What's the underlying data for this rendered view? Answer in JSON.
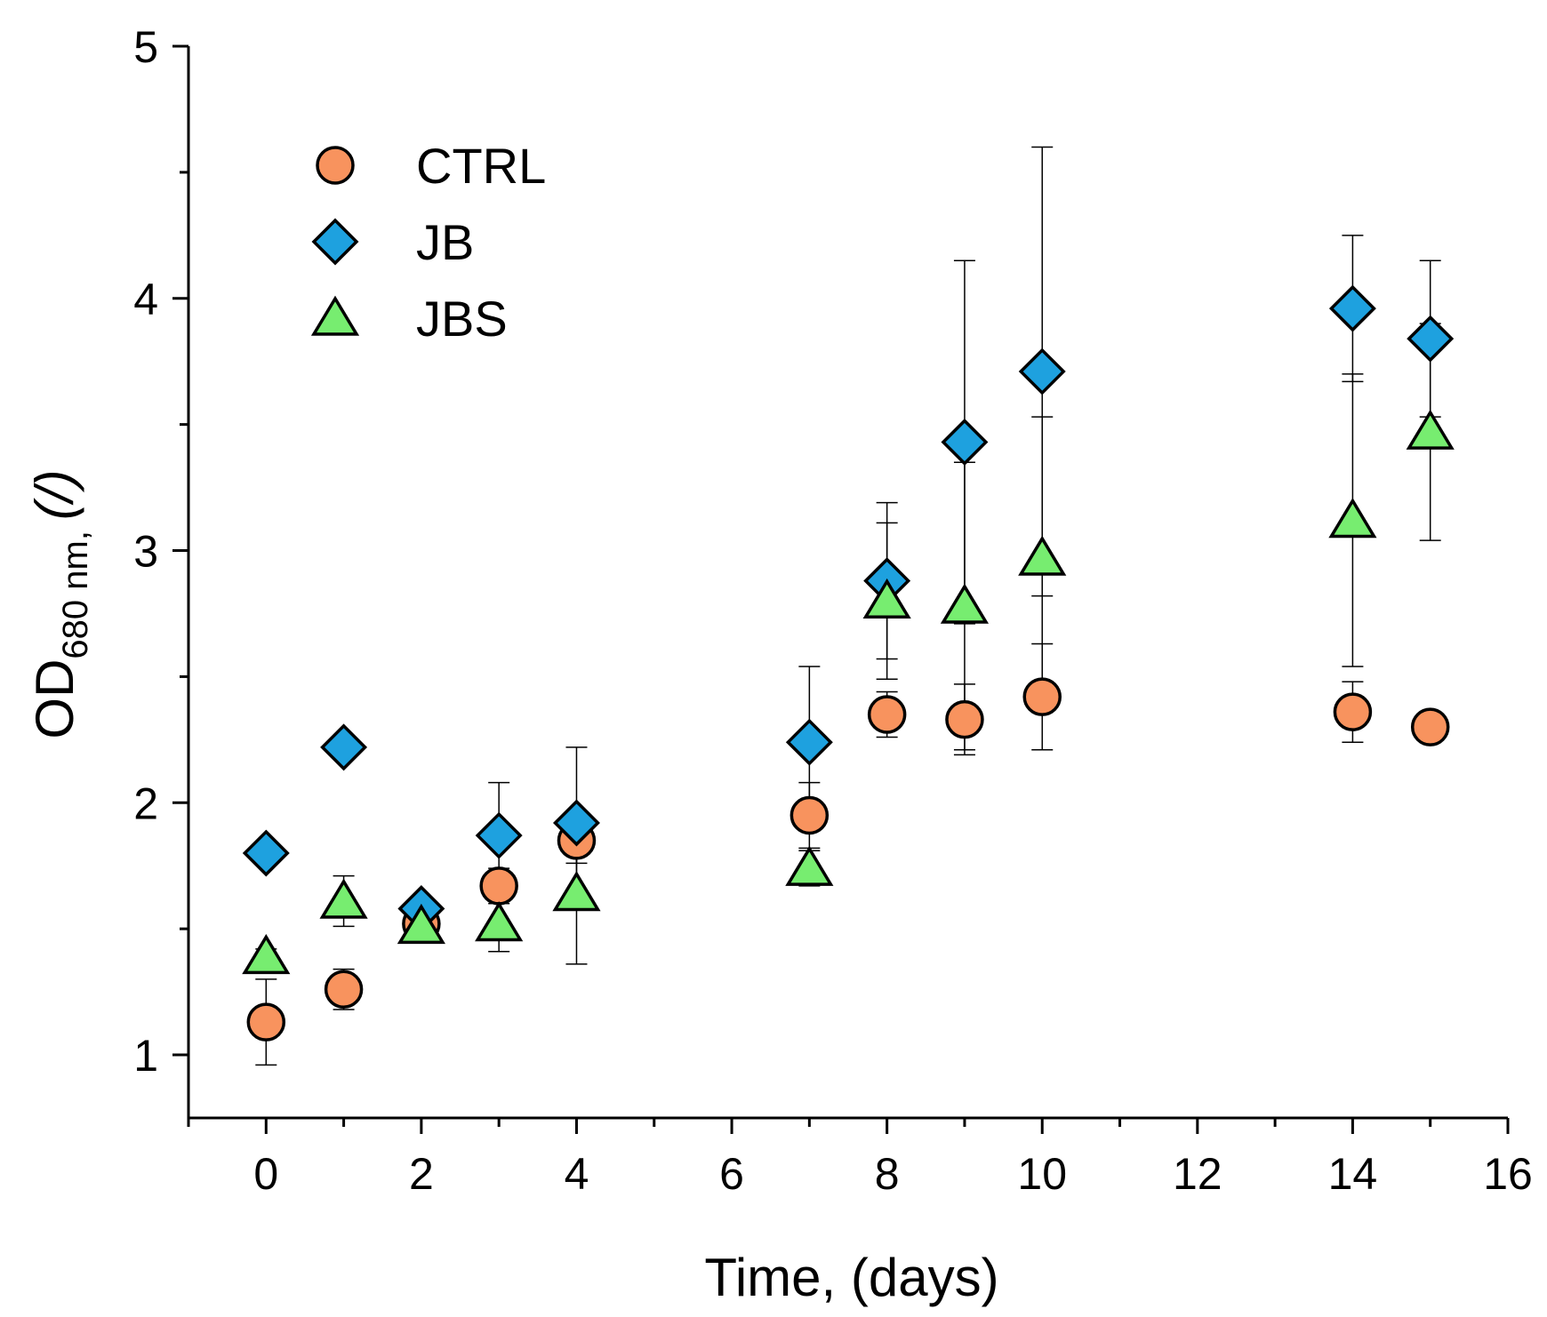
{
  "chart_data": {
    "type": "scatter",
    "title": "",
    "xlabel": "Time, (days)",
    "ylabel": {
      "main": "OD",
      "subscript": "680 nm,",
      "unit": "(/)"
    },
    "xlim": [
      -1,
      16
    ],
    "ylim": [
      0.75,
      5
    ],
    "xticks": [
      0,
      2,
      4,
      6,
      8,
      10,
      12,
      14,
      16
    ],
    "yticks": [
      1,
      2,
      3,
      4,
      5
    ],
    "grid": false,
    "legend_position": "top-left",
    "series": [
      {
        "name": "CTRL",
        "marker": "circle",
        "color": "#F8935E",
        "x": [
          0,
          1,
          2,
          3,
          4,
          7,
          8,
          9,
          10,
          14,
          15
        ],
        "y": [
          1.13,
          1.26,
          1.52,
          1.67,
          1.85,
          1.95,
          2.35,
          2.33,
          2.42,
          2.36,
          2.3
        ],
        "err": [
          0.17,
          0.08,
          0.04,
          0.07,
          0.09,
          0.13,
          0.09,
          0.14,
          0.21,
          0.12,
          0.06
        ]
      },
      {
        "name": "JB",
        "marker": "diamond",
        "color": "#1EA1DF",
        "x": [
          0,
          1,
          2,
          3,
          4,
          7,
          8,
          9,
          10,
          14,
          15
        ],
        "y": [
          1.8,
          2.22,
          1.58,
          1.87,
          1.92,
          2.24,
          2.88,
          3.43,
          3.71,
          3.96,
          3.84
        ],
        "err": [
          0.04,
          0.04,
          0.04,
          0.21,
          0.3,
          0.3,
          0.31,
          0.72,
          0.89,
          0.29,
          0.31
        ]
      },
      {
        "name": "JBS",
        "marker": "triangle",
        "color": "#77ED70",
        "x": [
          0,
          1,
          2,
          3,
          4,
          7,
          8,
          9,
          10,
          14,
          15
        ],
        "y": [
          1.39,
          1.61,
          1.51,
          1.52,
          1.64,
          1.74,
          2.8,
          2.78,
          2.97,
          3.12,
          3.47
        ],
        "err": [
          0.03,
          0.1,
          0.04,
          0.11,
          0.28,
          0.07,
          0.31,
          0.57,
          0.56,
          0.58,
          0.43
        ]
      }
    ]
  }
}
